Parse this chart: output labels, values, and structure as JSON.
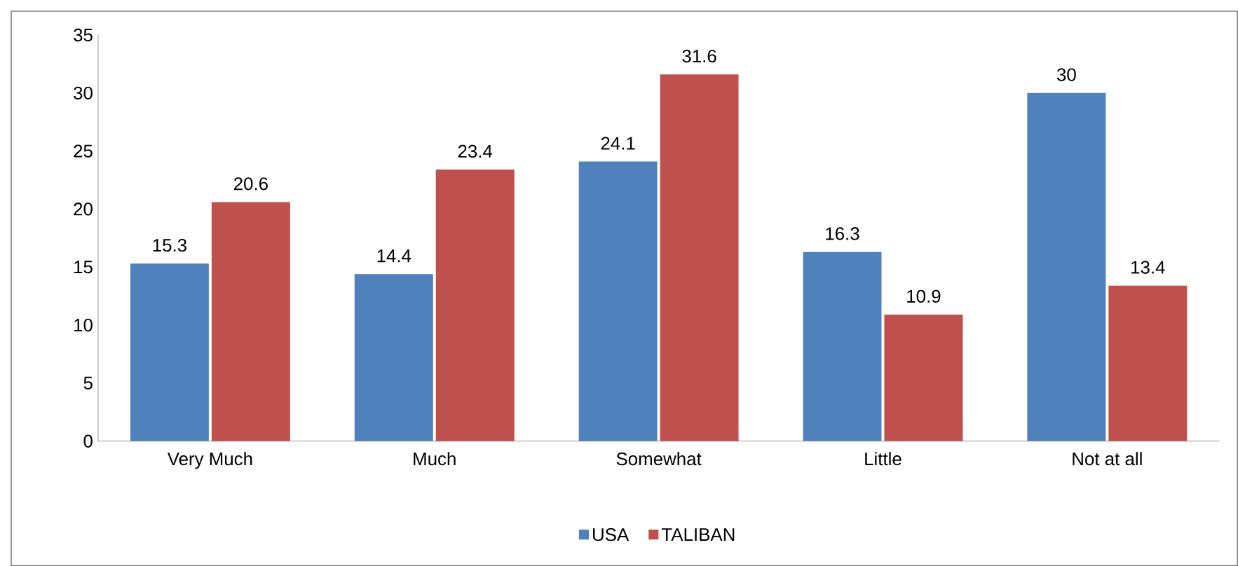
{
  "chart_data": {
    "type": "bar",
    "categories": [
      "Very Much",
      "Much",
      "Somewhat",
      "Little",
      "Not at all"
    ],
    "series": [
      {
        "name": "USA",
        "color": "#4f81bd",
        "values": [
          15.3,
          14.4,
          24.1,
          16.3,
          30
        ]
      },
      {
        "name": "TALIBAN",
        "color": "#c0504d",
        "values": [
          20.6,
          23.4,
          31.6,
          10.9,
          13.4
        ]
      }
    ],
    "ylim": [
      0,
      35
    ],
    "yticks": [
      0,
      5,
      10,
      15,
      20,
      25,
      30,
      35
    ],
    "data_labels": true,
    "grid": false,
    "legend": "bottom"
  }
}
